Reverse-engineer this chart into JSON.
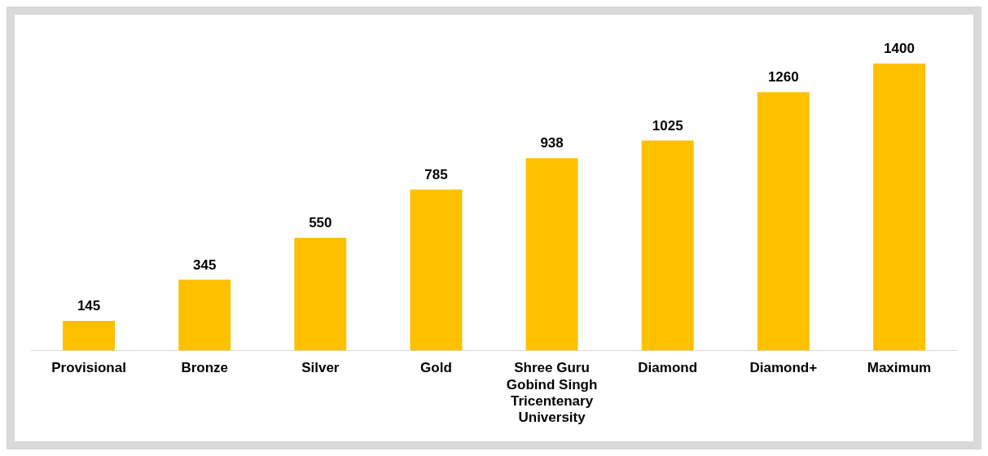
{
  "chart_data": {
    "type": "bar",
    "categories": [
      "Provisional",
      "Bronze",
      "Silver",
      "Gold",
      "Shree Guru Gobind Singh Tricentenary University",
      "Diamond",
      "Diamond+",
      "Maximum"
    ],
    "values": [
      145,
      345,
      550,
      785,
      938,
      1025,
      1260,
      1400
    ],
    "color": "#ffc000",
    "data_labels": true,
    "grid": false,
    "legend": false
  }
}
